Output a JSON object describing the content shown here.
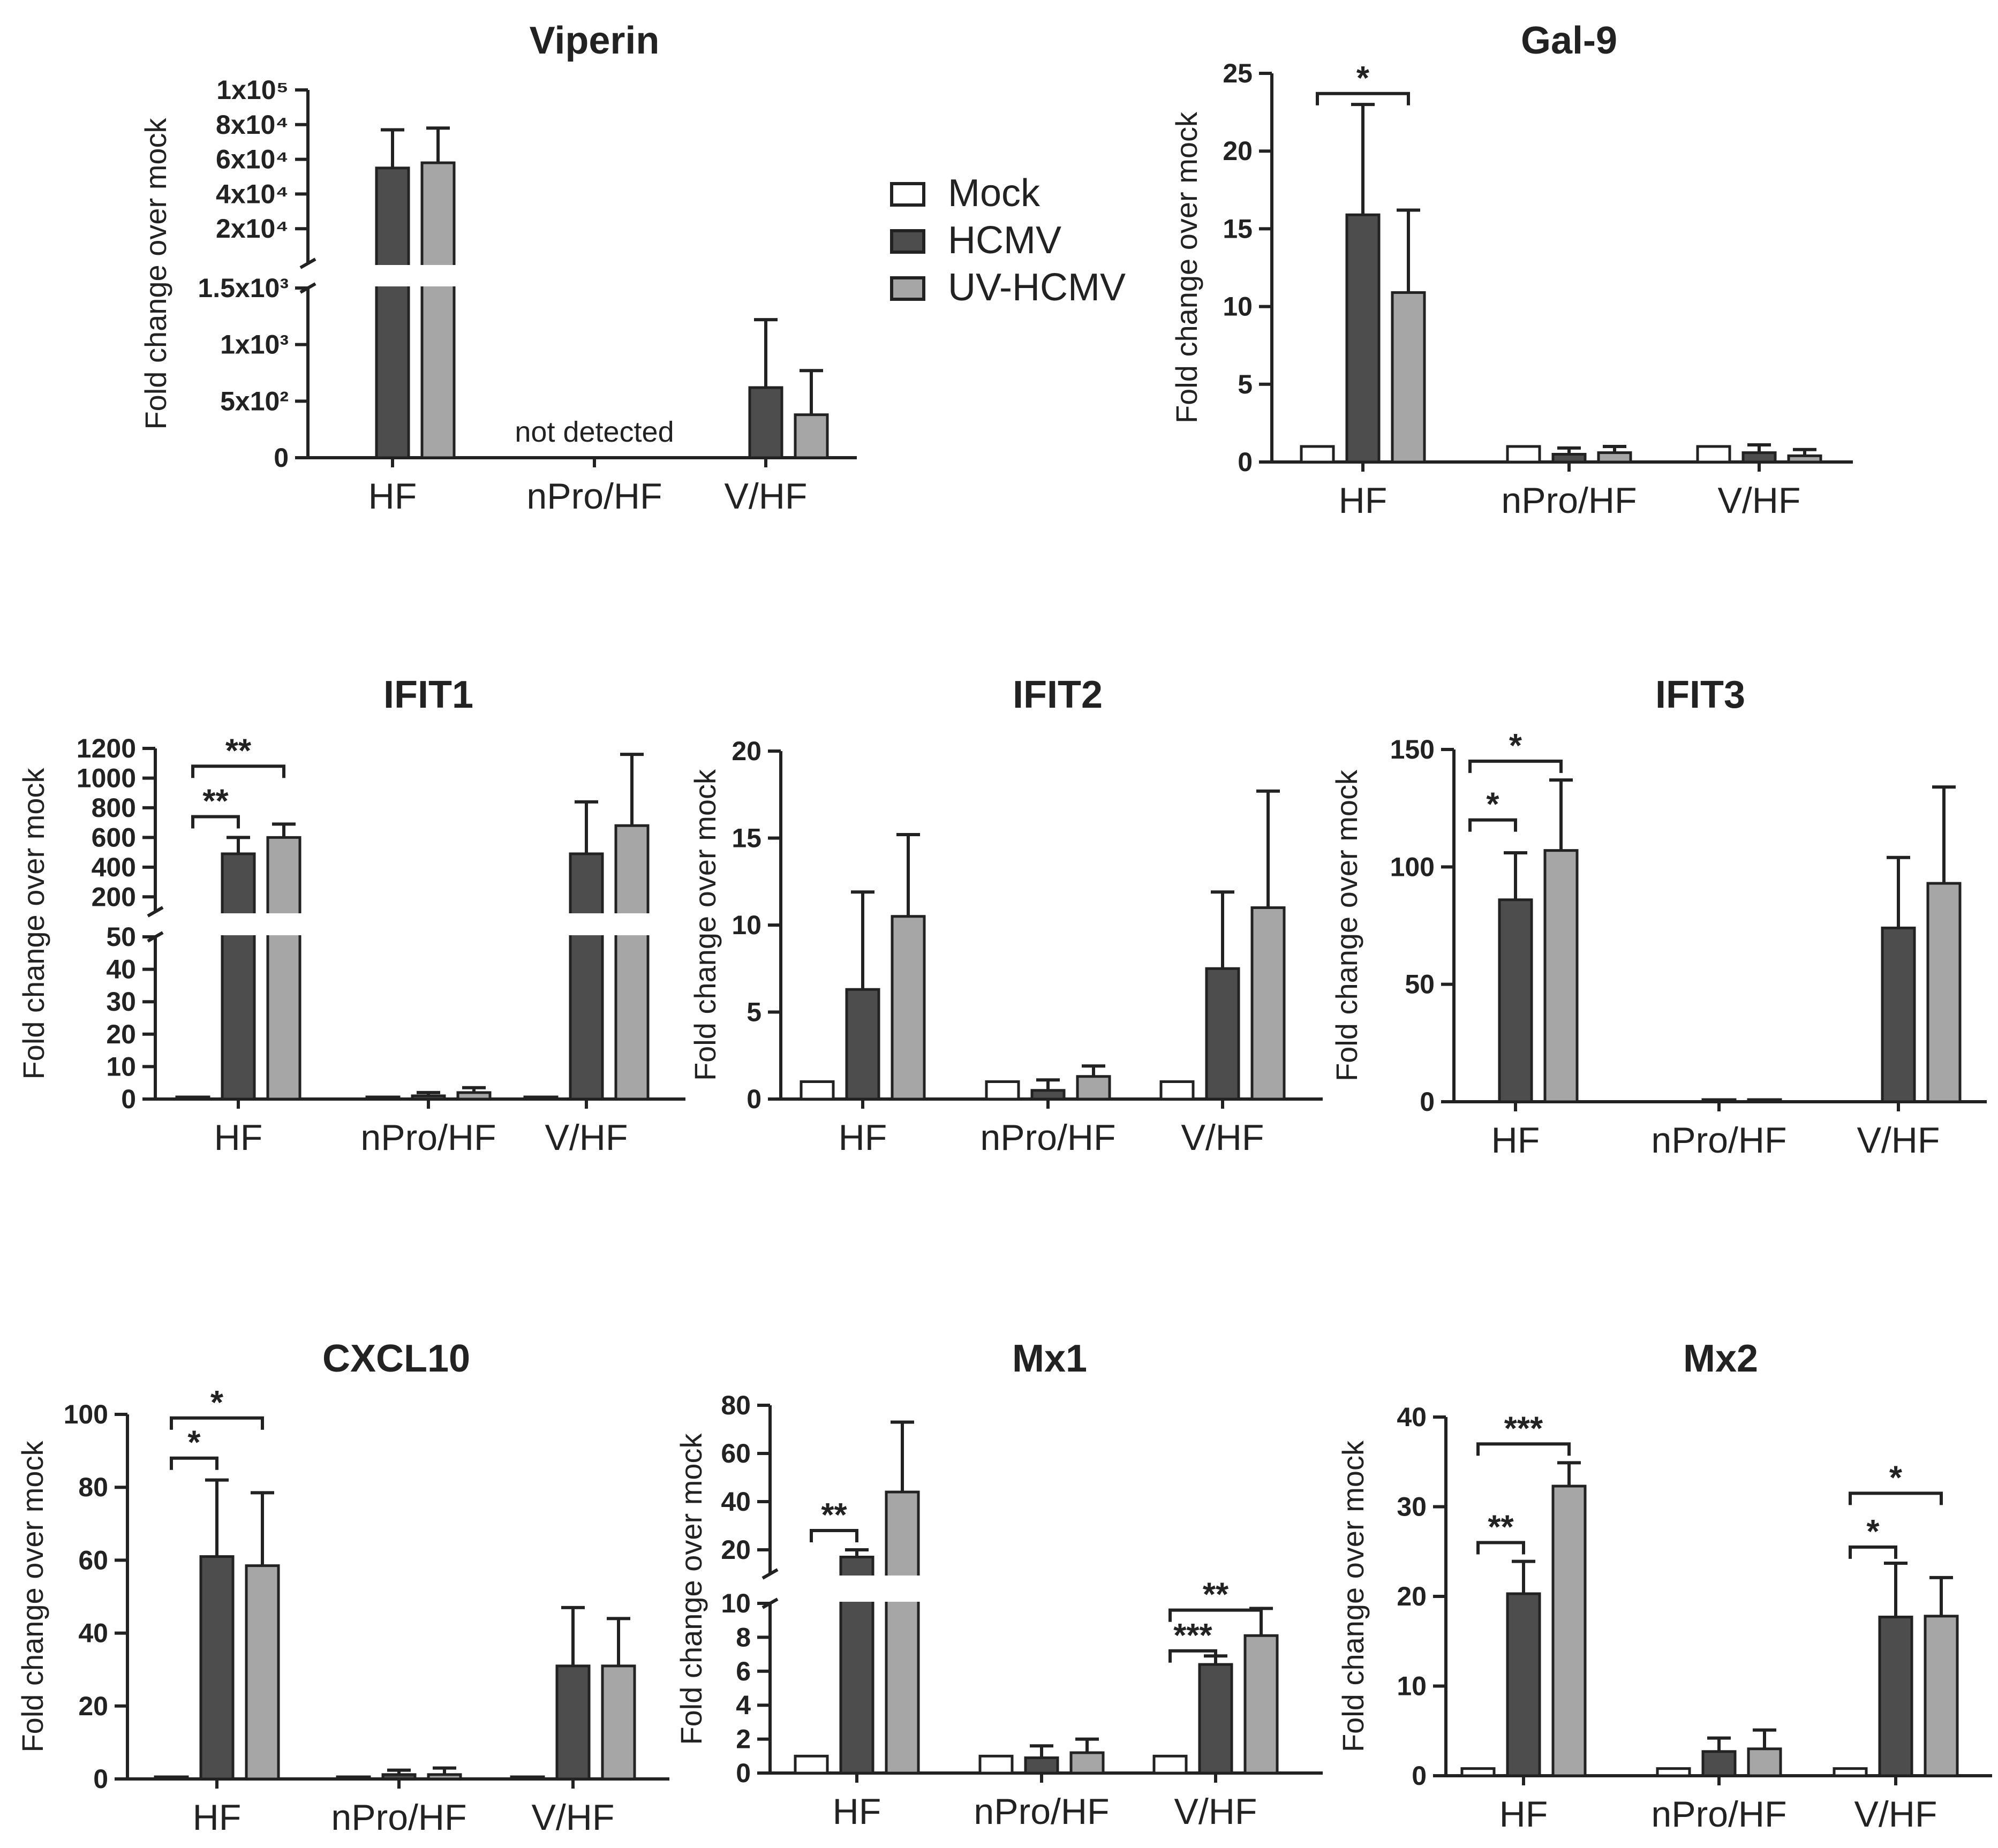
{
  "legend": [
    {
      "label": "Mock",
      "color": "#ffffff"
    },
    {
      "label": "HCMV",
      "color": "#4d4d4d"
    },
    {
      "label": "UV-HCMV",
      "color": "#a6a6a6"
    }
  ],
  "chart_data": [
    {
      "id": "viperin",
      "type": "bar",
      "title": "Viperin",
      "ylabel": "Fold change over mock",
      "categories": [
        "HF",
        "nPro/HF",
        "V/HF"
      ],
      "series": [
        {
          "name": "Mock",
          "values": [
            null,
            null,
            null
          ],
          "errors": [
            0,
            0,
            0
          ]
        },
        {
          "name": "HCMV",
          "values": [
            55000,
            null,
            620
          ],
          "errors": [
            22000,
            0,
            600
          ]
        },
        {
          "name": "UV-HCMV",
          "values": [
            58000,
            null,
            380
          ],
          "errors": [
            20000,
            0,
            390
          ]
        }
      ],
      "yaxis": {
        "broken": true,
        "lower": {
          "range": [
            0,
            1500
          ],
          "ticks": [
            0,
            500,
            1000,
            1500
          ],
          "tick_labels": [
            "0",
            "5x10²",
            "1x10³",
            "1.5x10³"
          ]
        },
        "upper": {
          "range": [
            0,
            100000
          ],
          "ticks": [
            20000,
            40000,
            60000,
            80000,
            100000
          ],
          "tick_labels": [
            "2x10⁴",
            "4x10⁴",
            "6x10⁴",
            "8x10⁴",
            "1x10⁵"
          ]
        }
      },
      "annotations": [
        {
          "text": "not detected",
          "category": "nPro/HF"
        }
      ],
      "significance": []
    },
    {
      "id": "gal9",
      "type": "bar",
      "title": "Gal-9",
      "ylabel": "Fold change over mock",
      "categories": [
        "HF",
        "nPro/HF",
        "V/HF"
      ],
      "series": [
        {
          "name": "Mock",
          "values": [
            1,
            1,
            1
          ],
          "errors": [
            0,
            0,
            0
          ]
        },
        {
          "name": "HCMV",
          "values": [
            15.9,
            0.5,
            0.6
          ],
          "errors": [
            7.1,
            0.4,
            0.5
          ]
        },
        {
          "name": "UV-HCMV",
          "values": [
            10.9,
            0.6,
            0.4
          ],
          "errors": [
            5.3,
            0.4,
            0.4
          ]
        }
      ],
      "yaxis": {
        "broken": false,
        "range": [
          0,
          25
        ],
        "ticks": [
          0,
          5,
          10,
          15,
          20,
          25
        ],
        "tick_labels": [
          "0",
          "5",
          "10",
          "15",
          "20",
          "25"
        ]
      },
      "annotations": [],
      "significance": [
        {
          "category": "HF",
          "from": "Mock",
          "to": "UV-HCMV",
          "label": "*",
          "level": 23.7
        }
      ]
    },
    {
      "id": "ifit1",
      "type": "bar",
      "title": "IFIT1",
      "ylabel": "Fold change over mock",
      "categories": [
        "HF",
        "nPro/HF",
        "V/HF"
      ],
      "series": [
        {
          "name": "Mock",
          "values": [
            0.3,
            0.3,
            0.3
          ],
          "errors": [
            0,
            0,
            0
          ]
        },
        {
          "name": "HCMV",
          "values": [
            490,
            1,
            490
          ],
          "errors": [
            110,
            1,
            350
          ]
        },
        {
          "name": "UV-HCMV",
          "values": [
            600,
            2,
            680
          ],
          "errors": [
            90,
            1.5,
            480
          ]
        }
      ],
      "yaxis": {
        "broken": true,
        "lower": {
          "range": [
            0,
            50
          ],
          "ticks": [
            0,
            10,
            20,
            30,
            40,
            50
          ],
          "tick_labels": [
            "0",
            "10",
            "20",
            "30",
            "40",
            "50"
          ]
        },
        "upper": {
          "range": [
            100,
            1200
          ],
          "ticks": [
            200,
            400,
            600,
            800,
            1000,
            1200
          ],
          "tick_labels": [
            "200",
            "400",
            "600",
            "800",
            "1000",
            "1200"
          ]
        }
      },
      "annotations": [],
      "significance": [
        {
          "category": "HF",
          "from": "Mock",
          "to": "HCMV",
          "label": "**",
          "level": 740
        },
        {
          "category": "HF",
          "from": "Mock",
          "to": "UV-HCMV",
          "label": "**",
          "level": 1080
        }
      ]
    },
    {
      "id": "ifit2",
      "type": "bar",
      "title": "IFIT2",
      "ylabel": "Fold change over mock",
      "categories": [
        "HF",
        "nPro/HF",
        "V/HF"
      ],
      "series": [
        {
          "name": "Mock",
          "values": [
            1,
            1,
            1
          ],
          "errors": [
            0,
            0,
            0
          ]
        },
        {
          "name": "HCMV",
          "values": [
            6.3,
            0.5,
            7.5
          ],
          "errors": [
            5.6,
            0.6,
            4.4
          ]
        },
        {
          "name": "UV-HCMV",
          "values": [
            10.5,
            1.3,
            11
          ],
          "errors": [
            4.7,
            0.6,
            6.7
          ]
        }
      ],
      "yaxis": {
        "broken": false,
        "range": [
          0,
          20
        ],
        "ticks": [
          0,
          5,
          10,
          15,
          20
        ],
        "tick_labels": [
          "0",
          "5",
          "10",
          "15",
          "20"
        ]
      },
      "annotations": [],
      "significance": []
    },
    {
      "id": "ifit3",
      "type": "bar",
      "title": "IFIT3",
      "ylabel": "Fold change over mock",
      "categories": [
        "HF",
        "nPro/HF",
        "V/HF"
      ],
      "series": [
        {
          "name": "Mock",
          "values": [
            null,
            null,
            null
          ],
          "errors": [
            0,
            0,
            0
          ]
        },
        {
          "name": "HCMV",
          "values": [
            86,
            0.5,
            74
          ],
          "errors": [
            20,
            0,
            30
          ]
        },
        {
          "name": "UV-HCMV",
          "values": [
            107,
            0.5,
            93
          ],
          "errors": [
            30,
            0,
            41
          ]
        }
      ],
      "yaxis": {
        "broken": false,
        "range": [
          0,
          150
        ],
        "ticks": [
          0,
          50,
          100,
          150
        ],
        "tick_labels": [
          "0",
          "50",
          "100",
          "150"
        ]
      },
      "annotations": [],
      "significance": [
        {
          "category": "HF",
          "from": "Mock",
          "to": "HCMV",
          "label": "*",
          "level": 120
        },
        {
          "category": "HF",
          "from": "Mock",
          "to": "UV-HCMV",
          "label": "*",
          "level": 145
        }
      ]
    },
    {
      "id": "cxcl10",
      "type": "bar",
      "title": "CXCL10",
      "ylabel": "Fold change over mock",
      "categories": [
        "HF",
        "nPro/HF",
        "V/HF"
      ],
      "series": [
        {
          "name": "Mock",
          "values": [
            0.3,
            0.3,
            0.3
          ],
          "errors": [
            0,
            0,
            0
          ]
        },
        {
          "name": "HCMV",
          "values": [
            61,
            1.2,
            31
          ],
          "errors": [
            21,
            1.2,
            16
          ]
        },
        {
          "name": "UV-HCMV",
          "values": [
            58.5,
            1.2,
            31
          ],
          "errors": [
            20,
            1.8,
            13
          ]
        }
      ],
      "yaxis": {
        "broken": false,
        "range": [
          0,
          100
        ],
        "ticks": [
          0,
          20,
          40,
          60,
          80,
          100
        ],
        "tick_labels": [
          "0",
          "20",
          "40",
          "60",
          "80",
          "100"
        ]
      },
      "annotations": [],
      "significance": [
        {
          "category": "HF",
          "from": "Mock",
          "to": "HCMV",
          "label": "*",
          "level": 88
        },
        {
          "category": "HF",
          "from": "Mock",
          "to": "UV-HCMV",
          "label": "*",
          "level": 99
        }
      ]
    },
    {
      "id": "mx1",
      "type": "bar",
      "title": "Mx1",
      "ylabel": "Fold change over mock",
      "categories": [
        "HF",
        "nPro/HF",
        "V/HF"
      ],
      "series": [
        {
          "name": "Mock",
          "values": [
            1,
            1,
            1
          ],
          "errors": [
            0,
            0,
            0
          ]
        },
        {
          "name": "HCMV",
          "values": [
            17,
            0.9,
            6.4
          ],
          "errors": [
            3,
            0.7,
            0.5
          ]
        },
        {
          "name": "UV-HCMV",
          "values": [
            44,
            1.2,
            8.1
          ],
          "errors": [
            29,
            0.8,
            1.6
          ]
        }
      ],
      "yaxis": {
        "broken": true,
        "lower": {
          "range": [
            0,
            10
          ],
          "ticks": [
            0,
            2,
            4,
            6,
            8,
            10
          ],
          "tick_labels": [
            "0",
            "2",
            "4",
            "6",
            "8",
            "10"
          ]
        },
        "upper": {
          "range": [
            10,
            80
          ],
          "ticks": [
            20,
            40,
            60,
            80
          ],
          "tick_labels": [
            "20",
            "40",
            "60",
            "80"
          ]
        }
      },
      "annotations": [],
      "significance": [
        {
          "category": "HF",
          "from": "Mock",
          "to": "HCMV",
          "label": "**",
          "level": 28
        },
        {
          "category": "V/HF",
          "from": "Mock",
          "to": "HCMV",
          "label": "***",
          "level": 7.2
        },
        {
          "category": "V/HF",
          "from": "Mock",
          "to": "UV-HCMV",
          "label": "**",
          "level": 9.6
        }
      ]
    },
    {
      "id": "mx2",
      "type": "bar",
      "title": "Mx2",
      "ylabel": "Fold change over mock",
      "categories": [
        "HF",
        "nPro/HF",
        "V/HF"
      ],
      "series": [
        {
          "name": "Mock",
          "values": [
            0.8,
            0.8,
            0.8
          ],
          "errors": [
            0,
            0,
            0
          ]
        },
        {
          "name": "HCMV",
          "values": [
            20.3,
            2.7,
            17.7
          ],
          "errors": [
            3.6,
            1.5,
            6
          ]
        },
        {
          "name": "UV-HCMV",
          "values": [
            32.3,
            3,
            17.8
          ],
          "errors": [
            2.6,
            2.1,
            4.3
          ]
        }
      ],
      "yaxis": {
        "broken": false,
        "range": [
          0,
          40
        ],
        "ticks": [
          0,
          10,
          20,
          30,
          40
        ],
        "tick_labels": [
          "0",
          "10",
          "20",
          "30",
          "40"
        ]
      },
      "annotations": [],
      "significance": [
        {
          "category": "HF",
          "from": "Mock",
          "to": "HCMV",
          "label": "**",
          "level": 26
        },
        {
          "category": "HF",
          "from": "Mock",
          "to": "UV-HCMV",
          "label": "***",
          "level": 37
        },
        {
          "category": "V/HF",
          "from": "Mock",
          "to": "HCMV",
          "label": "*",
          "level": 25.5
        },
        {
          "category": "V/HF",
          "from": "Mock",
          "to": "UV-HCMV",
          "label": "*",
          "level": 31.5
        }
      ]
    }
  ]
}
